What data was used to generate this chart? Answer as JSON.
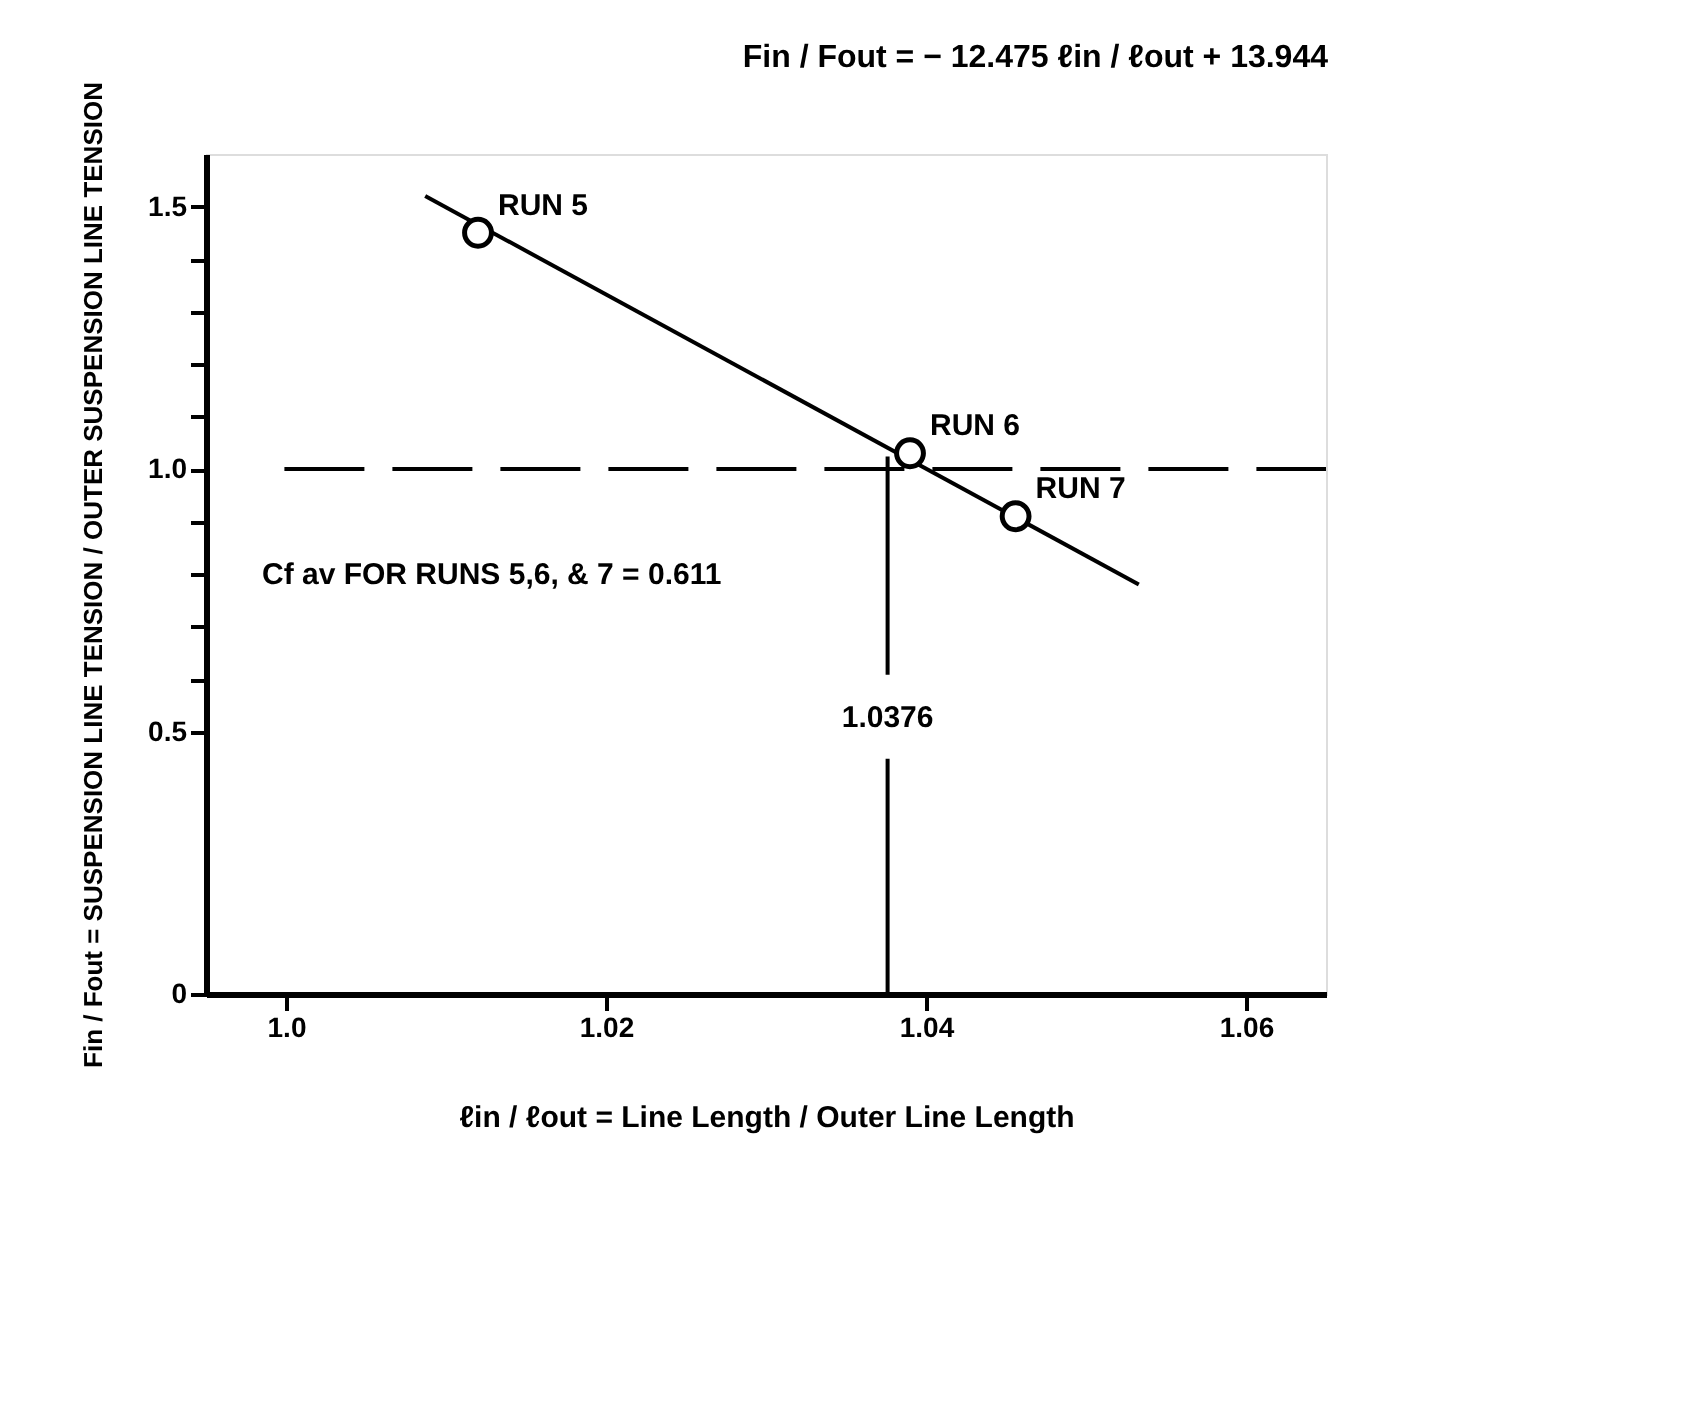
{
  "chart_data": {
    "type": "scatter",
    "title": "Fin / Fout = − 12.475 ℓin / ℓout + 13.944",
    "xlabel": "ℓin / ℓout = Line Length / Outer Line Length",
    "ylabel": "Fin / Fout = SUSPENSION LINE TENSION / OUTER SUSPENSION LINE TENSION",
    "xlim": [
      0.995,
      1.065
    ],
    "xticks": [
      {
        "value": 1.0,
        "label": "1.0"
      },
      1.02,
      1.04,
      1.06
    ],
    "ylim": [
      0,
      1.6
    ],
    "yticks": [
      0,
      0.5,
      {
        "value": 0.6,
        "label": null
      },
      {
        "value": 0.7,
        "label": null
      },
      {
        "value": 0.8,
        "label": null
      },
      {
        "value": 0.9,
        "label": null
      },
      {
        "value": 1.0,
        "label": "1.0"
      },
      {
        "value": 1.1,
        "label": null
      },
      {
        "value": 1.2,
        "label": null
      },
      {
        "value": 1.3,
        "label": null
      },
      {
        "value": 1.4,
        "label": null
      },
      1.5
    ],
    "grid": false,
    "series": [
      {
        "type": "line",
        "x": [
          1.0087,
          1.0533
        ],
        "values": [
          1.52,
          0.78
        ],
        "color": "#000000",
        "line_style": "solid"
      },
      {
        "x": [
          1.012,
          1.039,
          1.0456
        ],
        "values": [
          1.45,
          1.03,
          0.91
        ],
        "color": "#000000",
        "marker": "circle"
      }
    ],
    "ref_lines": [
      {
        "axis": "y",
        "value": 1.0,
        "label": null,
        "line_style": "dashed",
        "color": "#000000"
      },
      {
        "axis": "x",
        "value": 1.0376,
        "label": "1.0376",
        "line_style": "solid",
        "color": "#000000"
      }
    ],
    "annotations": [
      {
        "text": "RUN 5",
        "x": 1.012,
        "y": 1.45
      },
      {
        "text": "RUN 6",
        "x": 1.039,
        "y": 1.03
      },
      {
        "text": "RUN 7",
        "x": 1.0456,
        "y": 0.91
      },
      "Cf av FOR RUNS 5,6, & 7 = 0.611"
    ]
  }
}
